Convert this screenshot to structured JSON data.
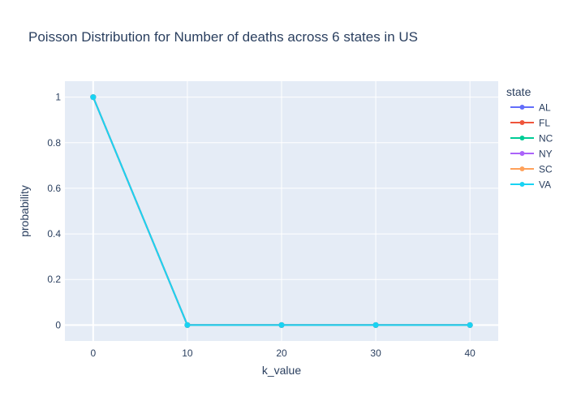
{
  "chart_data": {
    "type": "line",
    "title": "Poisson Distribution for Number of deaths across 6 states in US",
    "xlabel": "k_value",
    "ylabel": "probability",
    "x": [
      0,
      10,
      20,
      30,
      40
    ],
    "xlim": [
      -3,
      43
    ],
    "ylim": [
      -0.07,
      1.07
    ],
    "xticks": [
      0,
      10,
      20,
      30,
      40
    ],
    "yticks": [
      0,
      0.2,
      0.4,
      0.6,
      0.8,
      1
    ],
    "xtick_labels": [
      "0",
      "10",
      "20",
      "30",
      "40"
    ],
    "ytick_labels": [
      "0",
      "0.2",
      "0.4",
      "0.6",
      "0.8",
      "1"
    ],
    "grid": true,
    "legend_title": "state",
    "legend_position": "right",
    "background": "#E5ECF6",
    "series": [
      {
        "name": "AL",
        "color": "#636EFA",
        "values": [
          1,
          0,
          0,
          0,
          0
        ]
      },
      {
        "name": "FL",
        "color": "#EF553B",
        "values": [
          1,
          0,
          0,
          0,
          0
        ]
      },
      {
        "name": "NC",
        "color": "#00CC96",
        "values": [
          1,
          0,
          0,
          0,
          0
        ]
      },
      {
        "name": "NY",
        "color": "#AB63FA",
        "values": [
          1,
          0,
          0,
          0,
          0
        ]
      },
      {
        "name": "SC",
        "color": "#FFA15A",
        "values": [
          1,
          0,
          0,
          0,
          0
        ]
      },
      {
        "name": "VA",
        "color": "#19D3F3",
        "values": [
          1,
          0,
          0,
          0,
          0
        ]
      }
    ]
  }
}
